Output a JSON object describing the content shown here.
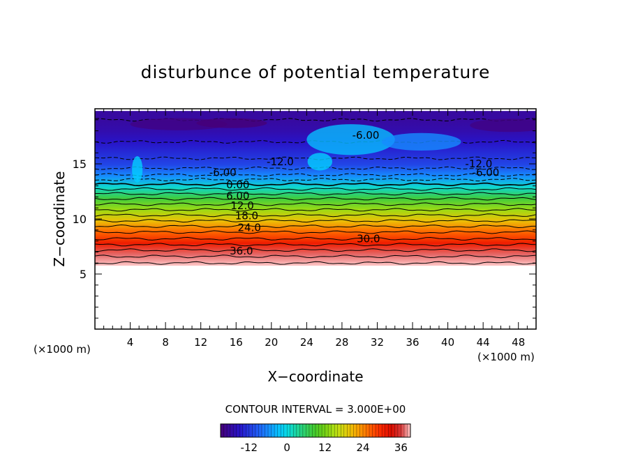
{
  "chart_data": {
    "type": "heatmap",
    "title": "disturbunce of potential temperature",
    "xlabel": "X−coordinate",
    "ylabel": "Z−coordinate",
    "x_unit": "(×1000 m)",
    "x_unit_right": "(×1000 m)",
    "xlim": [
      0,
      50
    ],
    "ylim": [
      0,
      20
    ],
    "x_ticks": [
      4,
      8,
      12,
      16,
      20,
      24,
      28,
      32,
      36,
      40,
      44,
      48
    ],
    "y_ticks": [
      5,
      10,
      15
    ],
    "contour_interval_text": "CONTOUR INTERVAL = 3.000E+00",
    "contour_interval": 3,
    "colorbar": {
      "min": -21,
      "max": 39,
      "ticks": [
        -12,
        0,
        12,
        24,
        36
      ]
    },
    "contour_labels": [
      {
        "text": "-12.0",
        "x": 21,
        "z": 15.2
      },
      {
        "text": "-12.0",
        "x": 43.5,
        "z": 15.0
      },
      {
        "text": "-6.00",
        "x": 30.7,
        "z": 17.6
      },
      {
        "text": "-6.00",
        "x": 14.5,
        "z": 14.2
      },
      {
        "text": "-6.00",
        "x": 44.3,
        "z": 14.2
      },
      {
        "text": "0.00",
        "x": 16.2,
        "z": 13.1
      },
      {
        "text": "6.00",
        "x": 16.2,
        "z": 12.1
      },
      {
        "text": "12.0",
        "x": 16.7,
        "z": 11.2
      },
      {
        "text": "18.0",
        "x": 17.2,
        "z": 10.3
      },
      {
        "text": "24.0",
        "x": 17.5,
        "z": 9.2
      },
      {
        "text": "30.0",
        "x": 31,
        "z": 8.2
      },
      {
        "text": "36.0",
        "x": 16.6,
        "z": 7.1
      }
    ],
    "field_profile": [
      {
        "z": 6.0,
        "value": 42
      },
      {
        "z": 7.0,
        "value": 37
      },
      {
        "z": 8.0,
        "value": 31
      },
      {
        "z": 9.0,
        "value": 26
      },
      {
        "z": 10.0,
        "value": 20
      },
      {
        "z": 11.0,
        "value": 14
      },
      {
        "z": 12.0,
        "value": 8
      },
      {
        "z": 13.0,
        "value": 1
      },
      {
        "z": 14.0,
        "value": -6
      },
      {
        "z": 15.0,
        "value": -11
      },
      {
        "z": 16.0,
        "value": -13
      },
      {
        "z": 17.0,
        "value": -15
      },
      {
        "z": 18.0,
        "value": -17
      },
      {
        "z": 19.0,
        "value": -18
      },
      {
        "z": 19.8,
        "value": -18
      }
    ]
  }
}
